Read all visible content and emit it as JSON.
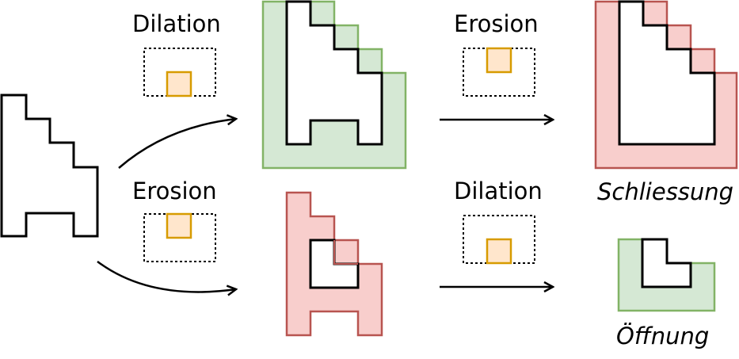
{
  "labels": {
    "top_left_op": "Dilation",
    "bottom_left_op": "Erosion",
    "top_right_op": "Erosion",
    "bottom_right_op": "Dilation",
    "result_closing": "Schliessung",
    "result_opening": "Öffnung"
  },
  "colors": {
    "dilation_fill": "#d5e8d4",
    "dilation_stroke": "#82b366",
    "erosion_fill": "#f8cecc",
    "erosion_stroke": "#b85450",
    "kernel_fill": "#ffe6cc",
    "kernel_stroke": "#d79b00",
    "outline": "#000000"
  }
}
